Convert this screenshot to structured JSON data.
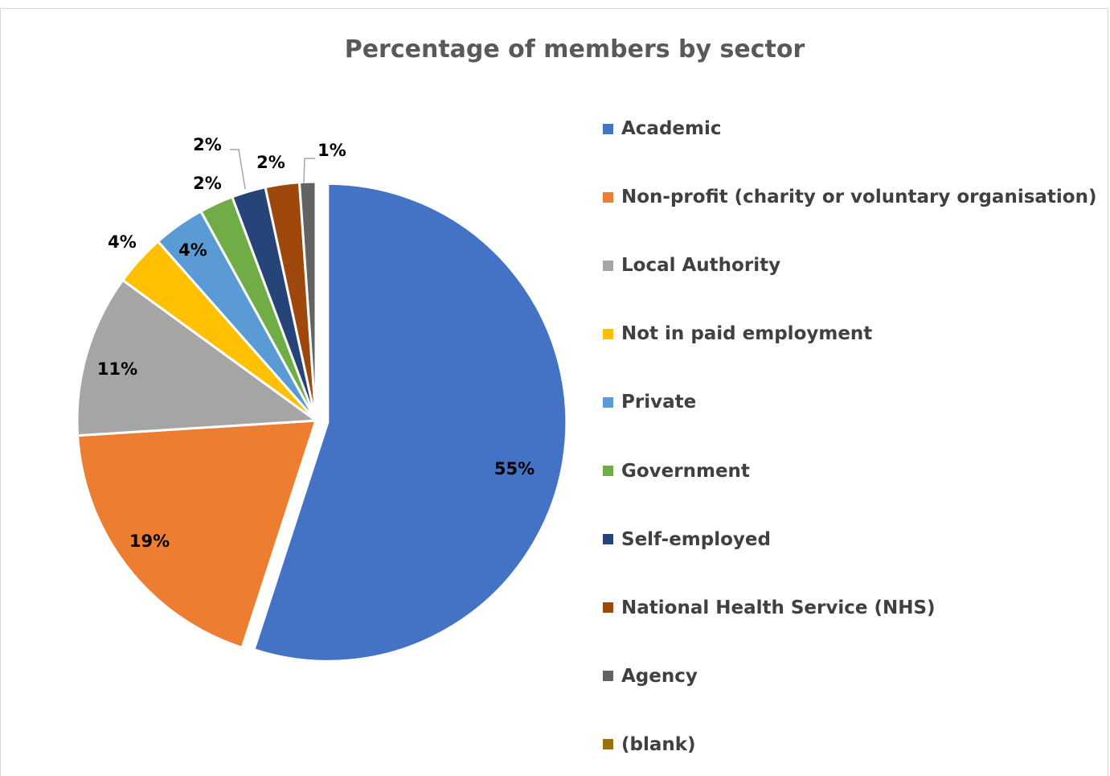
{
  "chart_data": {
    "type": "pie",
    "title": "Percentage of members by sector",
    "legend_position": "right",
    "slices": [
      {
        "name": "Academic",
        "value": 55,
        "label": "55%",
        "color": "#4472C4"
      },
      {
        "name": "Non-profit (charity or voluntary organisation)",
        "value": 19,
        "label": "19%",
        "color": "#ED7D31"
      },
      {
        "name": "Local Authority",
        "value": 11,
        "label": "11%",
        "color": "#A5A5A5"
      },
      {
        "name": "Not in paid employment",
        "value": 3.5,
        "label": "4%",
        "color": "#FFC000"
      },
      {
        "name": "Private",
        "value": 3.5,
        "label": "4%",
        "color": "#5B9BD5"
      },
      {
        "name": "Government",
        "value": 2.3,
        "label": "2%",
        "color": "#70AD47"
      },
      {
        "name": "Self-employed",
        "value": 2.3,
        "label": "2%",
        "color": "#264478"
      },
      {
        "name": "National Health Service (NHS)",
        "value": 2.3,
        "label": "2%",
        "color": "#9E480E"
      },
      {
        "name": "Agency",
        "value": 1.1,
        "label": "1%",
        "color": "#636363"
      },
      {
        "name": "(blank)",
        "value": 0,
        "label": "",
        "color": "#997300"
      }
    ]
  }
}
